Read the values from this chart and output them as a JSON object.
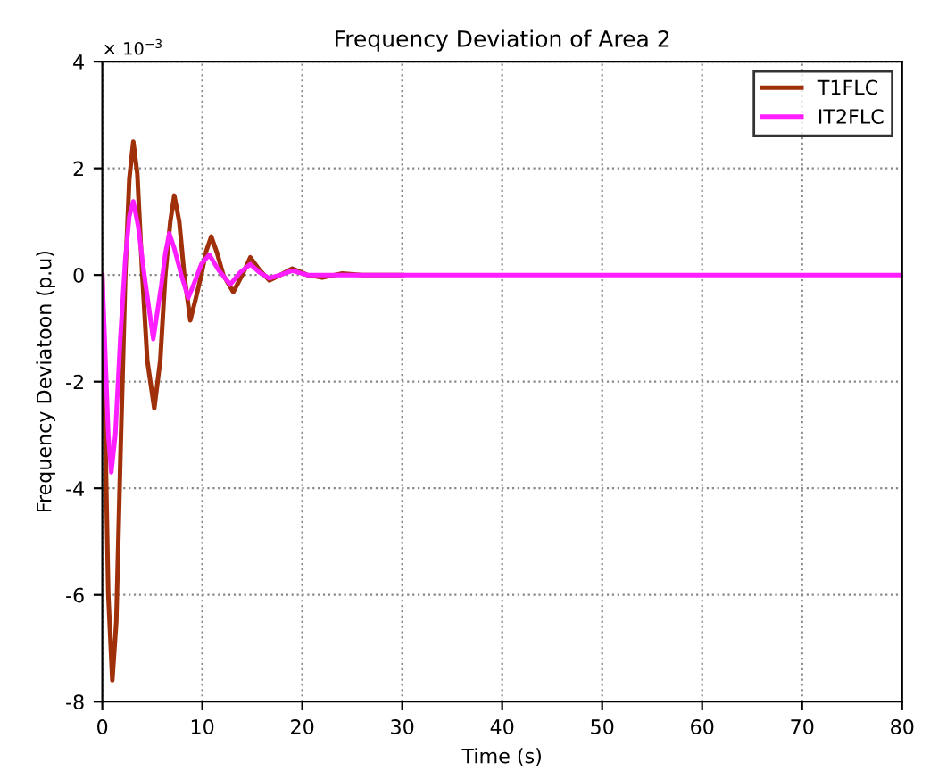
{
  "chart_data": {
    "type": "line",
    "title": "Frequency Deviation of Area 2",
    "xlabel": "Time (s)",
    "ylabel": "Frequency Deviatoon (p.u)",
    "annotations": [
      "× 10$^{−3}$"
    ],
    "series": [
      {
        "name": "T1FLC",
        "color": "#a0300a",
        "x": [
          0,
          0.3,
          0.6,
          1.0,
          1.4,
          1.8,
          2.3,
          2.7,
          3.1,
          3.5,
          4.0,
          4.5,
          5.2,
          5.8,
          6.3,
          6.8,
          7.2,
          7.7,
          8.2,
          8.8,
          9.4,
          9.9,
          10.4,
          10.9,
          11.5,
          12.1,
          13.1,
          14.0,
          14.8,
          15.7,
          16.7,
          17.8,
          19.0,
          20.5,
          22.0,
          24.0,
          26.0,
          30.0
        ],
        "values": [
          0,
          -3.0,
          -6.0,
          -7.6,
          -6.5,
          -3.5,
          0,
          1.8,
          2.5,
          1.9,
          0,
          -1.6,
          -2.5,
          -1.6,
          0,
          1.0,
          1.49,
          1.0,
          0,
          -0.85,
          -0.4,
          0,
          0.45,
          0.72,
          0.4,
          0,
          -0.32,
          0,
          0.33,
          0.1,
          -0.1,
          0,
          0.12,
          0,
          -0.05,
          0.03,
          0,
          0
        ]
      },
      {
        "name": "IT2FLC",
        "color": "#ff1eff",
        "x": [
          0,
          0.3,
          0.6,
          0.9,
          1.3,
          1.8,
          2.3,
          2.7,
          3.1,
          3.6,
          4.2,
          5.1,
          5.9,
          6.3,
          6.7,
          7.2,
          7.9,
          8.6,
          9.3,
          9.9,
          10.7,
          11.6,
          12.8,
          13.8,
          14.8,
          15.7,
          16.7,
          17.8,
          19.0,
          20.5,
          23.0,
          30.0,
          40.0,
          80.0
        ],
        "values": [
          0,
          -1.5,
          -3.0,
          -3.7,
          -3.0,
          -1.2,
          0.3,
          1.1,
          1.38,
          0.9,
          0,
          -1.2,
          -0.2,
          0.4,
          0.78,
          0.5,
          0,
          -0.43,
          -0.1,
          0.2,
          0.38,
          0.1,
          -0.18,
          0.05,
          0.2,
          0.05,
          -0.06,
          0,
          0.08,
          0,
          0,
          0,
          0,
          0
        ]
      }
    ],
    "xlim": [
      0,
      80
    ],
    "xticks": [
      0,
      10,
      20,
      30,
      40,
      50,
      60,
      70,
      80
    ],
    "ylim": [
      -8,
      4
    ],
    "yticks": [
      -8,
      -6,
      -4,
      -2,
      0,
      2,
      4
    ],
    "grid": true,
    "legend": "top right",
    "line_style": "solid",
    "marker": "none"
  }
}
